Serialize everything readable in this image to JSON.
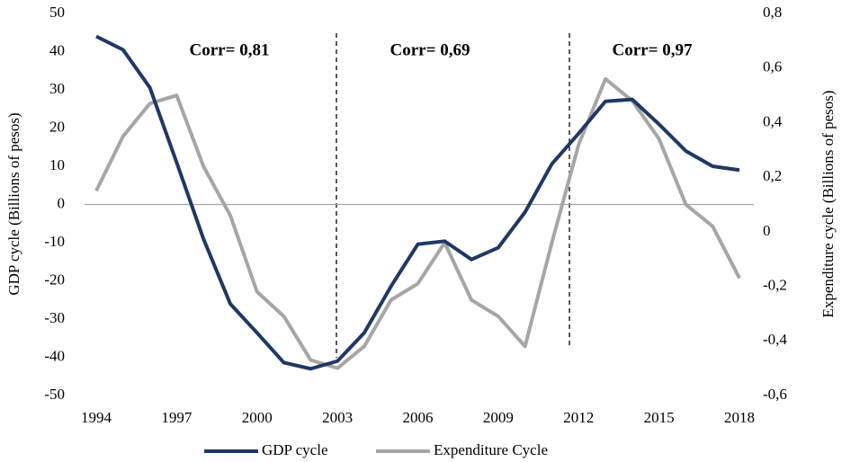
{
  "chart_data": {
    "type": "line",
    "ylabel": "GDP cycle (Billions of pesos)",
    "y2label": "Expenditure cycle (Billions of pesos)",
    "annotations": [
      "Corr= 0,81",
      "Corr= 0,69",
      "Corr= 0,97"
    ],
    "x": [
      1994,
      1995,
      1996,
      1997,
      1998,
      1999,
      2000,
      2001,
      2002,
      2003,
      2004,
      2005,
      2006,
      2007,
      2008,
      2009,
      2010,
      2011,
      2012,
      2013,
      2014,
      2015,
      2016,
      2017,
      2018
    ],
    "xlim": [
      1994,
      2018
    ],
    "xticks": [
      1994,
      1997,
      2000,
      2003,
      2006,
      2009,
      2012,
      2015,
      2018
    ],
    "ylim": [
      -50,
      50
    ],
    "yticks": [
      -50,
      -40,
      -30,
      -20,
      -10,
      0,
      10,
      20,
      30,
      40,
      50
    ],
    "y2lim": [
      -0.6,
      0.8
    ],
    "y2ticks": [
      {
        "value": -0.6,
        "label": "-0,6"
      },
      {
        "value": -0.4,
        "label": "-0,4"
      },
      {
        "value": -0.2,
        "label": "-0,2"
      },
      0,
      {
        "value": 0.2,
        "label": "0,2"
      },
      {
        "value": 0.4,
        "label": "0,4"
      },
      {
        "value": 0.6,
        "label": "0,6"
      },
      {
        "value": 0.8,
        "label": "0,8"
      }
    ],
    "series": [
      {
        "name": "GDP cycle",
        "color": "#1f3864",
        "values": [
          44,
          40.5,
          30.6,
          11,
          -9,
          -26,
          -33.6,
          -41.4,
          -43,
          -41,
          -33.6,
          -21.4,
          -10.4,
          -9.6,
          -14.4,
          -11.3,
          -2,
          10.6,
          18.6,
          27,
          27.5,
          21,
          14,
          10,
          9
        ]
      },
      {
        "name": "Expenditure Cycle",
        "color": "#a6a6a6",
        "axis": "y2",
        "values": [
          0.15,
          0.35,
          0.47,
          0.5,
          0.24,
          0.06,
          -0.22,
          -0.31,
          -0.47,
          -0.5,
          -0.42,
          -0.25,
          -0.19,
          -0.04,
          -0.25,
          -0.31,
          -0.42,
          -0.04,
          0.32,
          0.56,
          0.48,
          0.34,
          0.1,
          0.02,
          -0.17
        ]
      }
    ]
  }
}
